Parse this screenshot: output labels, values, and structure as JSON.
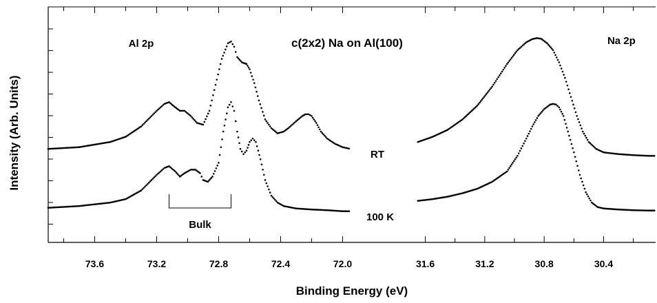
{
  "chart_data": {
    "type": "scatter",
    "title": "c(2x2) Na on Al(100)",
    "xlabel": "Binding Energy (eV)",
    "ylabel": "Intensity (Arb. Units)",
    "grid": false,
    "panels": [
      {
        "name": "Al 2p",
        "xlim": [
          73.9,
          71.9
        ],
        "xticks": [
          73.6,
          73.2,
          72.8,
          72.4,
          72.0
        ],
        "series": [
          {
            "name": "RT",
            "x": [
              73.9,
              73.7,
              73.5,
              73.4,
              73.3,
              73.2,
              73.15,
              73.12,
              73.08,
              73.05,
              73.02,
              72.98,
              72.94,
              72.9,
              72.86,
              72.82,
              72.78,
              72.74,
              72.72,
              72.7,
              72.68,
              72.65,
              72.62,
              72.6,
              72.57,
              72.54,
              72.5,
              72.46,
              72.42,
              72.38,
              72.35,
              72.3,
              72.26,
              72.24,
              72.22,
              72.2,
              72.17,
              72.14,
              72.1,
              72.05,
              72.0,
              71.95
            ],
            "values": [
              2.1,
              2.15,
              2.3,
              2.45,
              2.75,
              3.2,
              3.4,
              3.45,
              3.3,
              3.2,
              3.2,
              3.05,
              2.85,
              2.8,
              3.2,
              3.95,
              4.7,
              5.15,
              5.2,
              5.05,
              4.75,
              4.6,
              4.55,
              4.4,
              4.0,
              3.5,
              2.95,
              2.7,
              2.55,
              2.6,
              2.7,
              2.9,
              3.05,
              3.1,
              3.1,
              3.05,
              2.85,
              2.6,
              2.4,
              2.25,
              2.15,
              2.1
            ]
          },
          {
            "name": "100 K",
            "x": [
              73.9,
              73.7,
              73.5,
              73.4,
              73.3,
              73.2,
              73.15,
              73.12,
              73.08,
              73.05,
              73.02,
              72.98,
              72.95,
              72.92,
              72.9,
              72.87,
              72.84,
              72.8,
              72.77,
              72.74,
              72.72,
              72.7,
              72.68,
              72.66,
              72.64,
              72.62,
              72.6,
              72.58,
              72.56,
              72.53,
              72.5,
              72.46,
              72.42,
              72.38,
              72.3,
              72.2,
              72.1,
              72.0,
              71.95
            ],
            "values": [
              0.4,
              0.45,
              0.55,
              0.65,
              0.9,
              1.35,
              1.55,
              1.6,
              1.45,
              1.3,
              1.4,
              1.5,
              1.5,
              1.4,
              1.2,
              1.15,
              1.3,
              1.7,
              2.6,
              3.3,
              3.45,
              3.2,
              2.6,
              2.1,
              1.95,
              2.05,
              2.3,
              2.4,
              2.3,
              1.8,
              1.2,
              0.75,
              0.55,
              0.45,
              0.38,
              0.35,
              0.33,
              0.3,
              0.3
            ]
          }
        ]
      },
      {
        "name": "Na 2p",
        "xlim": [
          31.7,
          30.05
        ],
        "xticks": [
          31.6,
          31.2,
          30.8,
          30.4
        ],
        "series": [
          {
            "name": "RT",
            "x": [
              31.65,
              31.55,
              31.45,
              31.35,
              31.25,
              31.15,
              31.05,
              30.98,
              30.92,
              30.88,
              30.85,
              30.82,
              30.78,
              30.74,
              30.7,
              30.66,
              30.62,
              30.58,
              30.54,
              30.5,
              30.45,
              30.4,
              30.3,
              30.2,
              30.1,
              30.05
            ],
            "values": [
              2.3,
              2.45,
              2.65,
              2.95,
              3.35,
              3.9,
              4.55,
              4.95,
              5.18,
              5.27,
              5.3,
              5.28,
              5.15,
              4.95,
              4.6,
              4.15,
              3.6,
              3.05,
              2.6,
              2.3,
              2.1,
              2.0,
              1.95,
              1.92,
              1.9,
              1.9
            ]
          },
          {
            "name": "100 K",
            "x": [
              31.65,
              31.55,
              31.45,
              31.35,
              31.25,
              31.15,
              31.05,
              30.98,
              30.92,
              30.88,
              30.84,
              30.8,
              30.76,
              30.74,
              30.72,
              30.7,
              30.67,
              30.64,
              30.6,
              30.56,
              30.52,
              30.48,
              30.44,
              30.4,
              30.3,
              30.2,
              30.1,
              30.05
            ],
            "values": [
              0.6,
              0.65,
              0.72,
              0.82,
              0.95,
              1.15,
              1.45,
              1.9,
              2.4,
              2.75,
              3.05,
              3.25,
              3.38,
              3.4,
              3.38,
              3.3,
              3.05,
              2.6,
              2.0,
              1.35,
              0.85,
              0.55,
              0.42,
              0.38,
              0.35,
              0.33,
              0.32,
              0.32
            ]
          }
        ]
      }
    ],
    "ylim": [
      -0.6,
      6.2
    ],
    "annotations": [
      {
        "text": "Al 2p"
      },
      {
        "text": "Na 2p"
      },
      {
        "text": "RT"
      },
      {
        "text": "100 K"
      },
      {
        "text": "Bulk",
        "span": [
          73.12,
          72.72
        ]
      }
    ]
  }
}
